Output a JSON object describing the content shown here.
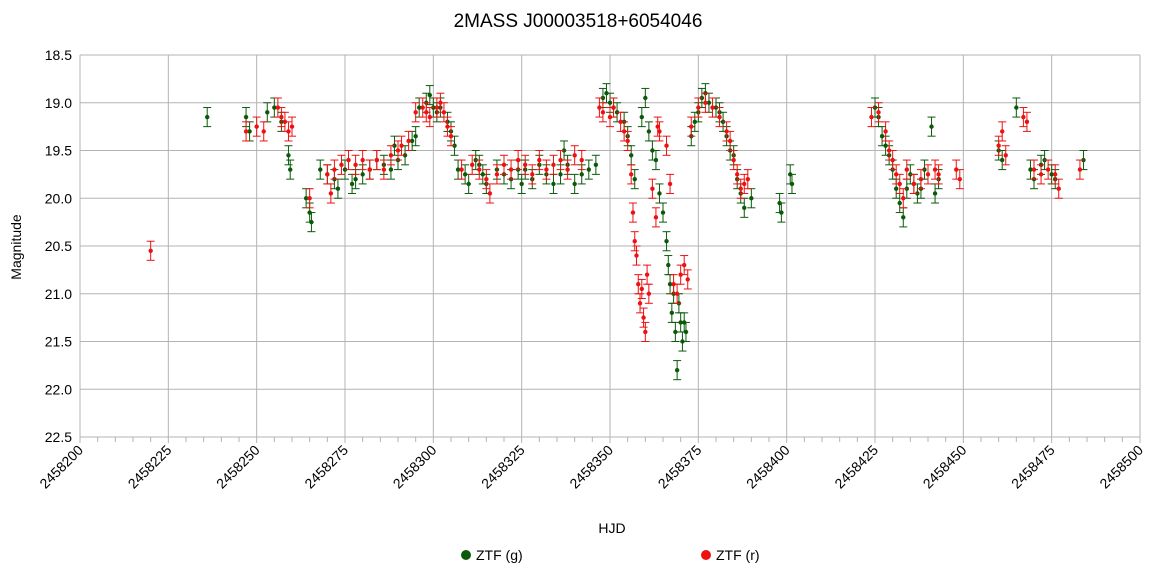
{
  "chart_data": {
    "type": "scatter",
    "title": "2MASS J00003518+6054046",
    "xlabel": "HJD",
    "ylabel": "Magnitude",
    "xlim": [
      2458200,
      2458500
    ],
    "ylim": [
      18.5,
      22.5
    ],
    "y_inverted": true,
    "x_ticks": [
      "2458200",
      "2458225",
      "2458250",
      "2458275",
      "2458300",
      "2458325",
      "2458350",
      "2458375",
      "2458400",
      "2458425",
      "2458450",
      "2458475",
      "2458500"
    ],
    "y_ticks": [
      "18.5",
      "19.0",
      "19.5",
      "20.0",
      "20.5",
      "21.0",
      "21.5",
      "22.0",
      "22.5"
    ],
    "grid": true,
    "legend_position": "bottom",
    "error_bar_halfwidth": 0.1,
    "series": [
      {
        "name": "ZTF (g)",
        "color": "#0a5a0a",
        "points": [
          [
            2458236,
            19.15
          ],
          [
            2458247,
            19.15
          ],
          [
            2458248,
            19.3
          ],
          [
            2458253,
            19.1
          ],
          [
            2458255,
            19.05
          ],
          [
            2458257,
            19.2
          ],
          [
            2458259,
            19.55
          ],
          [
            2458259.5,
            19.7
          ],
          [
            2458264,
            20.0
          ],
          [
            2458265,
            20.15
          ],
          [
            2458265.5,
            20.25
          ],
          [
            2458268,
            19.7
          ],
          [
            2458270,
            19.75
          ],
          [
            2458272,
            19.8
          ],
          [
            2458273,
            19.9
          ],
          [
            2458275,
            19.7
          ],
          [
            2458277,
            19.85
          ],
          [
            2458278,
            19.8
          ],
          [
            2458280,
            19.75
          ],
          [
            2458282,
            19.7
          ],
          [
            2458284,
            19.6
          ],
          [
            2458286,
            19.65
          ],
          [
            2458288,
            19.7
          ],
          [
            2458289,
            19.45
          ],
          [
            2458290,
            19.6
          ],
          [
            2458292,
            19.55
          ],
          [
            2458294,
            19.4
          ],
          [
            2458295,
            19.35
          ],
          [
            2458296,
            19.05
          ],
          [
            2458298,
            19.0
          ],
          [
            2458299,
            18.92
          ],
          [
            2458300,
            19.05
          ],
          [
            2458301,
            19.1
          ],
          [
            2458302,
            19.05
          ],
          [
            2458304,
            19.2
          ],
          [
            2458305,
            19.3
          ],
          [
            2458306,
            19.45
          ],
          [
            2458307,
            19.7
          ],
          [
            2458309,
            19.75
          ],
          [
            2458310,
            19.85
          ],
          [
            2458312,
            19.6
          ],
          [
            2458313,
            19.65
          ],
          [
            2458314,
            19.75
          ],
          [
            2458315,
            19.85
          ],
          [
            2458318,
            19.7
          ],
          [
            2458320,
            19.75
          ],
          [
            2458322,
            19.8
          ],
          [
            2458324,
            19.7
          ],
          [
            2458325,
            19.85
          ],
          [
            2458326,
            19.7
          ],
          [
            2458328,
            19.8
          ],
          [
            2458330,
            19.65
          ],
          [
            2458332,
            19.75
          ],
          [
            2458334,
            19.85
          ],
          [
            2458336,
            19.75
          ],
          [
            2458337,
            19.5
          ],
          [
            2458338,
            19.65
          ],
          [
            2458340,
            19.85
          ],
          [
            2458342,
            19.75
          ],
          [
            2458344,
            19.7
          ],
          [
            2458346,
            19.65
          ],
          [
            2458348,
            18.95
          ],
          [
            2458349,
            18.9
          ],
          [
            2458350,
            19.0
          ],
          [
            2458351,
            19.05
          ],
          [
            2458352,
            19.1
          ],
          [
            2458354,
            19.2
          ],
          [
            2458355,
            19.35
          ],
          [
            2458356,
            19.55
          ],
          [
            2458357,
            19.8
          ],
          [
            2458359,
            19.15
          ],
          [
            2458360,
            18.95
          ],
          [
            2458361,
            19.3
          ],
          [
            2458362,
            19.5
          ],
          [
            2458363,
            19.6
          ],
          [
            2458364,
            19.95
          ],
          [
            2458365,
            20.15
          ],
          [
            2458366,
            20.45
          ],
          [
            2458366.5,
            20.7
          ],
          [
            2458367,
            20.9
          ],
          [
            2458367.5,
            21.2
          ],
          [
            2458368,
            21.0
          ],
          [
            2458368.5,
            21.4
          ],
          [
            2458369,
            21.8
          ],
          [
            2458369.5,
            21.1
          ],
          [
            2458370,
            21.3
          ],
          [
            2458370.5,
            21.5
          ],
          [
            2458371,
            21.3
          ],
          [
            2458371.5,
            21.4
          ],
          [
            2458373,
            19.35
          ],
          [
            2458374,
            19.2
          ],
          [
            2458375,
            19.1
          ],
          [
            2458376,
            18.95
          ],
          [
            2458377,
            18.9
          ],
          [
            2458378,
            19.0
          ],
          [
            2458380,
            19.05
          ],
          [
            2458381,
            19.1
          ],
          [
            2458382,
            19.2
          ],
          [
            2458383,
            19.35
          ],
          [
            2458384,
            19.5
          ],
          [
            2458385,
            19.55
          ],
          [
            2458386,
            19.8
          ],
          [
            2458387,
            19.95
          ],
          [
            2458388,
            20.1
          ],
          [
            2458390,
            20.0
          ],
          [
            2458398,
            20.05
          ],
          [
            2458398.5,
            20.15
          ],
          [
            2458401,
            19.75
          ],
          [
            2458401.5,
            19.85
          ],
          [
            2458425,
            19.05
          ],
          [
            2458426,
            19.15
          ],
          [
            2458427,
            19.35
          ],
          [
            2458428,
            19.45
          ],
          [
            2458429,
            19.55
          ],
          [
            2458430,
            19.7
          ],
          [
            2458431,
            19.9
          ],
          [
            2458432,
            20.05
          ],
          [
            2458433,
            20.2
          ],
          [
            2458434,
            19.9
          ],
          [
            2458435,
            19.75
          ],
          [
            2458436,
            19.85
          ],
          [
            2458437,
            19.95
          ],
          [
            2458438,
            19.9
          ],
          [
            2458439,
            19.7
          ],
          [
            2458441,
            19.25
          ],
          [
            2458442,
            19.95
          ],
          [
            2458443,
            19.8
          ],
          [
            2458460,
            19.5
          ],
          [
            2458461,
            19.6
          ],
          [
            2458465,
            19.05
          ],
          [
            2458469,
            19.7
          ],
          [
            2458470,
            19.8
          ],
          [
            2458472,
            19.65
          ],
          [
            2458473,
            19.6
          ],
          [
            2458475,
            19.75
          ],
          [
            2458476,
            19.8
          ],
          [
            2458484,
            19.6
          ]
        ]
      },
      {
        "name": "ZTF (r)",
        "color": "#ee1111",
        "points": [
          [
            2458220,
            20.55
          ],
          [
            2458247,
            19.3
          ],
          [
            2458250,
            19.25
          ],
          [
            2458252,
            19.3
          ],
          [
            2458256,
            19.05
          ],
          [
            2458257,
            19.15
          ],
          [
            2458258,
            19.2
          ],
          [
            2458259,
            19.3
          ],
          [
            2458260,
            19.25
          ],
          [
            2458265,
            20.0
          ],
          [
            2458270,
            19.75
          ],
          [
            2458271,
            19.95
          ],
          [
            2458272,
            19.7
          ],
          [
            2458274,
            19.65
          ],
          [
            2458276,
            19.6
          ],
          [
            2458278,
            19.65
          ],
          [
            2458280,
            19.6
          ],
          [
            2458282,
            19.7
          ],
          [
            2458284,
            19.6
          ],
          [
            2458286,
            19.7
          ],
          [
            2458288,
            19.55
          ],
          [
            2458290,
            19.5
          ],
          [
            2458291,
            19.45
          ],
          [
            2458293,
            19.4
          ],
          [
            2458295,
            19.1
          ],
          [
            2458297,
            19.05
          ],
          [
            2458298,
            19.1
          ],
          [
            2458299,
            19.15
          ],
          [
            2458301,
            19.05
          ],
          [
            2458302,
            19.0
          ],
          [
            2458303,
            19.1
          ],
          [
            2458304,
            19.25
          ],
          [
            2458305,
            19.35
          ],
          [
            2458308,
            19.7
          ],
          [
            2458311,
            19.65
          ],
          [
            2458313,
            19.7
          ],
          [
            2458315,
            19.8
          ],
          [
            2458316,
            19.95
          ],
          [
            2458318,
            19.75
          ],
          [
            2458320,
            19.65
          ],
          [
            2458322,
            19.7
          ],
          [
            2458324,
            19.6
          ],
          [
            2458326,
            19.65
          ],
          [
            2458328,
            19.75
          ],
          [
            2458330,
            19.6
          ],
          [
            2458332,
            19.7
          ],
          [
            2458334,
            19.65
          ],
          [
            2458336,
            19.6
          ],
          [
            2458338,
            19.7
          ],
          [
            2458340,
            19.55
          ],
          [
            2458342,
            19.6
          ],
          [
            2458347,
            19.05
          ],
          [
            2458348,
            19.1
          ],
          [
            2458350,
            19.15
          ],
          [
            2458351,
            19.05
          ],
          [
            2458353,
            19.2
          ],
          [
            2458354,
            19.3
          ],
          [
            2458355,
            19.4
          ],
          [
            2458356,
            19.75
          ],
          [
            2458356.5,
            20.15
          ],
          [
            2458357,
            20.45
          ],
          [
            2458357.5,
            20.6
          ],
          [
            2458358,
            20.9
          ],
          [
            2458358.5,
            21.1
          ],
          [
            2458359,
            20.95
          ],
          [
            2458359.5,
            21.25
          ],
          [
            2458360,
            21.4
          ],
          [
            2458360.5,
            20.8
          ],
          [
            2458361,
            21.0
          ],
          [
            2458362,
            19.9
          ],
          [
            2458363,
            20.2
          ],
          [
            2458363.5,
            19.25
          ],
          [
            2458364,
            19.3
          ],
          [
            2458366,
            19.45
          ],
          [
            2458367,
            19.85
          ],
          [
            2458368,
            20.9
          ],
          [
            2458369,
            21.0
          ],
          [
            2458370,
            20.8
          ],
          [
            2458371,
            20.7
          ],
          [
            2458372,
            20.85
          ],
          [
            2458373,
            19.25
          ],
          [
            2458375,
            19.05
          ],
          [
            2458377,
            19.0
          ],
          [
            2458379,
            19.05
          ],
          [
            2458381,
            19.15
          ],
          [
            2458383,
            19.3
          ],
          [
            2458384,
            19.4
          ],
          [
            2458385,
            19.6
          ],
          [
            2458386,
            19.75
          ],
          [
            2458387,
            19.9
          ],
          [
            2458388,
            19.85
          ],
          [
            2458389,
            19.8
          ],
          [
            2458424,
            19.15
          ],
          [
            2458426,
            19.1
          ],
          [
            2458428,
            19.3
          ],
          [
            2458429,
            19.5
          ],
          [
            2458430,
            19.6
          ],
          [
            2458431,
            19.75
          ],
          [
            2458432,
            19.85
          ],
          [
            2458433,
            20.0
          ],
          [
            2458434,
            19.7
          ],
          [
            2458436,
            19.85
          ],
          [
            2458438,
            19.8
          ],
          [
            2458440,
            19.75
          ],
          [
            2458442,
            19.7
          ],
          [
            2458443,
            19.75
          ],
          [
            2458448,
            19.7
          ],
          [
            2458449,
            19.8
          ],
          [
            2458460,
            19.45
          ],
          [
            2458461,
            19.3
          ],
          [
            2458462,
            19.55
          ],
          [
            2458467,
            19.15
          ],
          [
            2458468,
            19.2
          ],
          [
            2458470,
            19.7
          ],
          [
            2458472,
            19.75
          ],
          [
            2458474,
            19.7
          ],
          [
            2458476,
            19.75
          ],
          [
            2458477,
            19.9
          ],
          [
            2458483,
            19.7
          ]
        ]
      }
    ]
  }
}
